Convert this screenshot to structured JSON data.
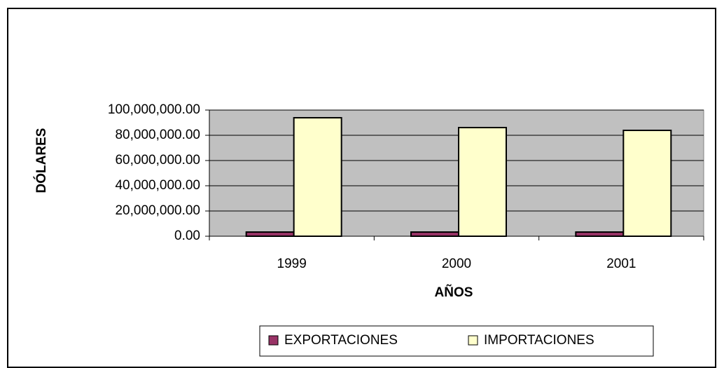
{
  "chart_data": {
    "type": "bar",
    "categories": [
      "1999",
      "2000",
      "2001"
    ],
    "series": [
      {
        "name": "EXPORTACIONES",
        "color": "#993366",
        "values": [
          3300000,
          3300000,
          3300000
        ]
      },
      {
        "name": "IMPORTACIONES",
        "color": "#FFFFCC",
        "values": [
          93900000,
          86100000,
          83900000
        ]
      }
    ],
    "ylim": [
      0,
      100000000
    ],
    "yticks": [
      {
        "value": 0,
        "label": "0.00"
      },
      {
        "value": 20000000,
        "label": "20,000,000.00"
      },
      {
        "value": 40000000,
        "label": "40,000,000.00"
      },
      {
        "value": 60000000,
        "label": "60,000,000.00"
      },
      {
        "value": 80000000,
        "label": "80,000,000.00"
      },
      {
        "value": 100000000,
        "label": "100,000,000.00"
      }
    ],
    "ylabel": "DÓLARES",
    "xlabel": "AÑOS",
    "grid": true,
    "plot_background": "#C0C0C0",
    "legend": "bottom"
  }
}
